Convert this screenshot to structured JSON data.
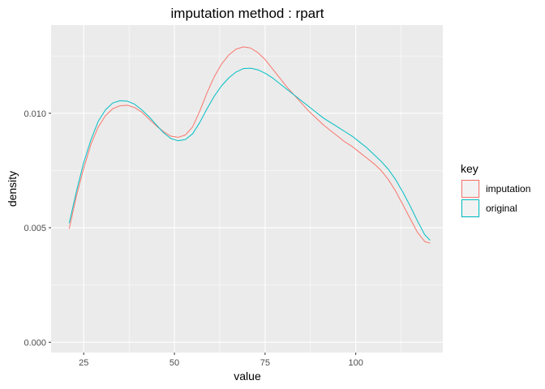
{
  "chart_data": {
    "type": "line",
    "title": "imputation method : rpart",
    "xlabel": "value",
    "ylabel": "density",
    "xlim": [
      16,
      124
    ],
    "ylim": [
      -0.00045,
      0.01385
    ],
    "x_ticks": [
      25,
      50,
      75,
      100
    ],
    "x_tick_labels": [
      "25",
      "50",
      "75",
      "100"
    ],
    "y_ticks": [
      0.0,
      0.005,
      0.01
    ],
    "y_tick_labels": [
      "0.000",
      "0.005",
      "0.010"
    ],
    "grid": true,
    "legend": {
      "title": "key",
      "position": "right",
      "entries": [
        "imputation",
        "original"
      ]
    },
    "series": [
      {
        "name": "imputation",
        "color": "#F8766D",
        "x": [
          21,
          23,
          25,
          27,
          29,
          31,
          33,
          35,
          37,
          39,
          41,
          43,
          45,
          47,
          49,
          51,
          53,
          55,
          57,
          59,
          61,
          63,
          65,
          67,
          69,
          71,
          73,
          75,
          77,
          79,
          81,
          83,
          85,
          87,
          89,
          91,
          93,
          95,
          97,
          99,
          101,
          103,
          105,
          107,
          109,
          111,
          113,
          115,
          117,
          119,
          120.5
        ],
        "y": [
          0.00495,
          0.0064,
          0.0076,
          0.00865,
          0.0094,
          0.0099,
          0.0102,
          0.01033,
          0.01035,
          0.01025,
          0.01005,
          0.00975,
          0.00945,
          0.0092,
          0.009,
          0.00895,
          0.00905,
          0.0094,
          0.0101,
          0.0109,
          0.0116,
          0.01215,
          0.01255,
          0.0128,
          0.0129,
          0.01285,
          0.01265,
          0.01235,
          0.01195,
          0.01155,
          0.01115,
          0.0108,
          0.01045,
          0.0101,
          0.0098,
          0.0095,
          0.00925,
          0.009,
          0.00875,
          0.00855,
          0.0083,
          0.00805,
          0.0078,
          0.0075,
          0.0071,
          0.0066,
          0.006,
          0.0054,
          0.0048,
          0.0044,
          0.00433
        ]
      },
      {
        "name": "original",
        "color": "#00BFC4",
        "x": [
          21,
          23,
          25,
          27,
          29,
          31,
          33,
          35,
          37,
          39,
          41,
          43,
          45,
          47,
          49,
          51,
          53,
          55,
          57,
          59,
          61,
          63,
          65,
          67,
          69,
          71,
          73,
          75,
          77,
          79,
          81,
          83,
          85,
          87,
          89,
          91,
          93,
          95,
          97,
          99,
          101,
          103,
          105,
          107,
          109,
          111,
          113,
          115,
          117,
          119,
          120.5
        ],
        "y": [
          0.0052,
          0.0066,
          0.00785,
          0.00885,
          0.00965,
          0.01015,
          0.01045,
          0.01055,
          0.01053,
          0.0104,
          0.01015,
          0.00985,
          0.0095,
          0.00915,
          0.0089,
          0.0088,
          0.00885,
          0.0091,
          0.0096,
          0.0102,
          0.01075,
          0.0112,
          0.01155,
          0.0118,
          0.01195,
          0.01197,
          0.0119,
          0.01175,
          0.01155,
          0.0113,
          0.01105,
          0.0108,
          0.01055,
          0.0103,
          0.01005,
          0.0098,
          0.0096,
          0.0094,
          0.0092,
          0.009,
          0.00875,
          0.0085,
          0.0082,
          0.0079,
          0.00755,
          0.0071,
          0.00655,
          0.00595,
          0.0053,
          0.0047,
          0.00445
        ]
      }
    ]
  }
}
